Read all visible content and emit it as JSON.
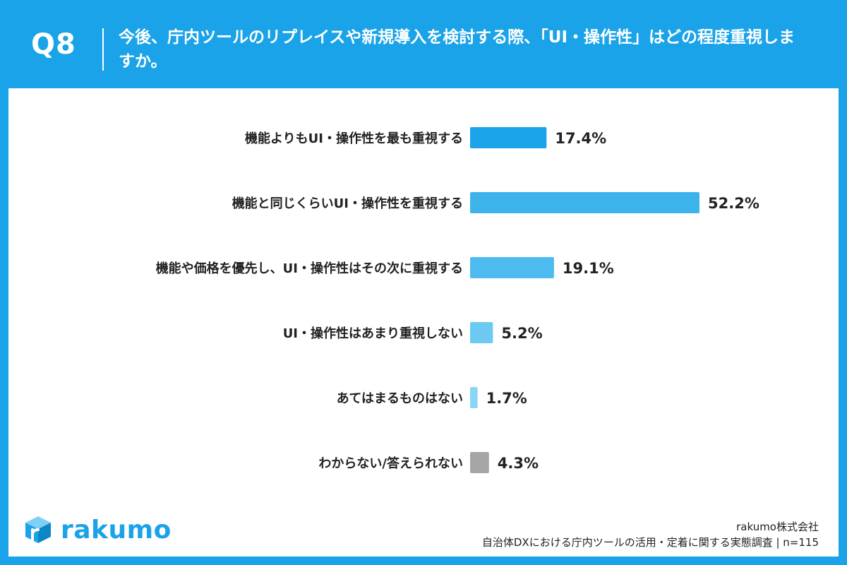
{
  "header": {
    "question_number": "Q8",
    "question_text": "今後、庁内ツールのリプレイスや新規導入を検討する際、「UI・操作性」はどの程度重視しますか。"
  },
  "chart_data": {
    "type": "bar",
    "orientation": "horizontal",
    "categories": [
      "機能よりもUI・操作性を最も重視する",
      "機能と同じくらいUI・操作性を重視する",
      "機能や価格を優先し、UI・操作性はその次に重視する",
      "UI・操作性はあまり重視しない",
      "あてはまるものはない",
      "わからない/答えられない"
    ],
    "values": [
      17.4,
      52.2,
      19.1,
      5.2,
      1.7,
      4.3
    ],
    "value_labels": [
      "17.4%",
      "52.2%",
      "19.1%",
      "5.2%",
      "1.7%",
      "4.3%"
    ],
    "colors": [
      "#1aa3e8",
      "#3db3ec",
      "#4dbbef",
      "#6cc9f2",
      "#8ad6f6",
      "#a6a6a6"
    ],
    "xlim": [
      0,
      55
    ],
    "grid": false,
    "legend": "none"
  },
  "branding": {
    "logo_text": "rakumo",
    "logo_icon": "rakumo-cube-icon"
  },
  "footer": {
    "company": "rakumo株式会社",
    "survey": "自治体DXにおける庁内ツールの活用・定着に関する実態調査 | n=115"
  }
}
